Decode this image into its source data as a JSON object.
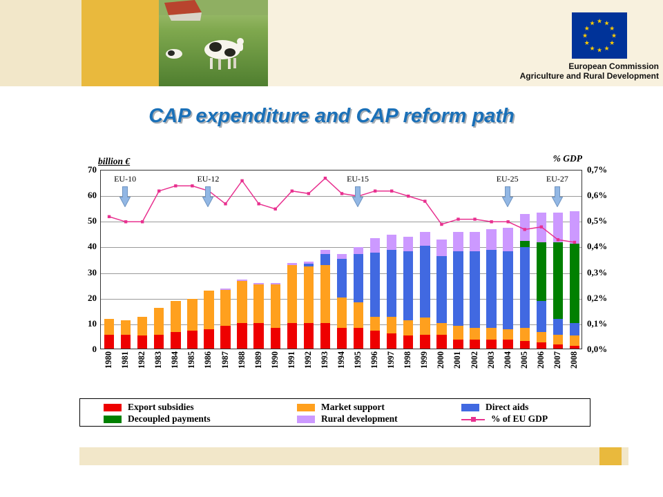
{
  "header": {
    "org_line1": "European Commission",
    "org_line2": "Agriculture and Rural Development"
  },
  "title": "CAP expenditure and CAP reform path",
  "chart_data": {
    "type": "bar",
    "stacked": true,
    "title": "CAP expenditure and CAP reform path",
    "categories": [
      "1980",
      "1981",
      "1982",
      "1983",
      "1984",
      "1985",
      "1986",
      "1987",
      "1988",
      "1989",
      "1990",
      "1991",
      "1992",
      "1993",
      "1994",
      "1995",
      "1996",
      "1997",
      "1998",
      "1999",
      "2000",
      "2001",
      "2002",
      "2003",
      "2004",
      "2005",
      "2006",
      "2007",
      "2008"
    ],
    "series": [
      {
        "name": "Export subsidies",
        "color": "#EE0000",
        "values": [
          5.5,
          5.5,
          5,
          5.5,
          6.5,
          7,
          7.5,
          9,
          10,
          10,
          8,
          10,
          10,
          10,
          8,
          8,
          7,
          6,
          5,
          5.5,
          5.5,
          3.5,
          3.5,
          3.5,
          3.5,
          3,
          2.5,
          1.5,
          1
        ]
      },
      {
        "name": "Market support",
        "color": "#FFA01E",
        "values": [
          6,
          5.5,
          7.5,
          10.5,
          12,
          12.5,
          15,
          14,
          16.5,
          15,
          17,
          22.5,
          22,
          22.5,
          12,
          10,
          5.5,
          6.5,
          6,
          6.5,
          4.5,
          5.5,
          4.5,
          4.5,
          4,
          5,
          4,
          4,
          4
        ]
      },
      {
        "name": "Direct aids",
        "color": "#4169E1",
        "values": [
          0,
          0,
          0,
          0,
          0,
          0,
          0,
          0,
          0,
          0,
          0,
          0,
          1,
          4.5,
          15,
          19,
          25,
          26,
          27,
          28,
          26,
          29,
          30,
          30.5,
          30.5,
          31.5,
          12,
          6,
          5
        ]
      },
      {
        "name": "Decoupled payments",
        "color": "#008000",
        "values": [
          0,
          0,
          0,
          0,
          0,
          0,
          0,
          0,
          0,
          0,
          0,
          0,
          0,
          0,
          0,
          0,
          0,
          0,
          0,
          0,
          0,
          0,
          0,
          0,
          0,
          2.5,
          23,
          30,
          31
        ]
      },
      {
        "name": "Rural development",
        "color": "#CC99FF",
        "values": [
          0,
          0,
          0,
          0,
          0,
          0,
          0,
          0.5,
          0.5,
          0.5,
          0.5,
          1,
          1,
          1.5,
          2,
          2.5,
          5.5,
          6,
          5.5,
          5.5,
          6.5,
          7.5,
          7.5,
          8,
          9,
          10.5,
          11.5,
          11.5,
          12.5
        ]
      }
    ],
    "line_series": {
      "name": "% of EU GDP",
      "color": "#E8308F",
      "values": [
        0.52,
        0.5,
        0.5,
        0.62,
        0.64,
        0.64,
        0.62,
        0.57,
        0.66,
        0.57,
        0.55,
        0.62,
        0.61,
        0.67,
        0.61,
        0.6,
        0.62,
        0.62,
        0.6,
        0.58,
        0.49,
        0.51,
        0.51,
        0.5,
        0.5,
        0.47,
        0.48,
        0.43,
        0.42
      ]
    },
    "left_axis": {
      "title": "billion €",
      "min": 0,
      "max": 70,
      "step": 10
    },
    "right_axis": {
      "title": "% GDP",
      "min": 0,
      "max": 0.7,
      "step": 0.1,
      "labels": [
        "0,0%",
        "0,1%",
        "0,2%",
        "0,3%",
        "0,4%",
        "0,5%",
        "0,6%",
        "0,7%"
      ]
    },
    "annotations": [
      {
        "label": "EU-10",
        "year": "1981"
      },
      {
        "label": "EU-12",
        "year": "1986"
      },
      {
        "label": "EU-15",
        "year": "1995"
      },
      {
        "label": "EU-25",
        "year": "2004"
      },
      {
        "label": "EU-27",
        "year": "2007"
      }
    ],
    "grid": true,
    "legend_position": "bottom"
  }
}
